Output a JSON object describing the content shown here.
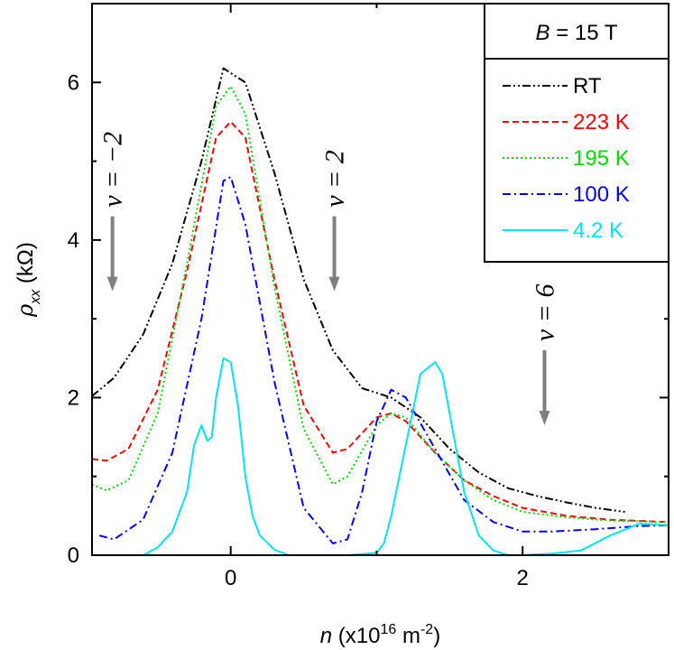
{
  "chart_data": {
    "type": "line",
    "xlabel": "n (x10^16 m^-2)",
    "ylabel": "ρxx (kΩ)",
    "xlim": [
      -0.95,
      3.0
    ],
    "ylim": [
      0,
      7.0
    ],
    "xticks": [
      0,
      2
    ],
    "yticks": [
      0,
      2,
      4,
      6
    ],
    "legend_title": "B = 15 T",
    "legend_position": "top-right",
    "colors": {
      "RT": "#000000",
      "223 K": "#ff0000",
      "195 K": "#00dd00",
      "100 K": "#0000ff",
      "4.2 K": "#00e5ee",
      "arrow": "#808080"
    },
    "annotations": [
      {
        "text": "ν = −2",
        "x": -0.81,
        "y_arrow_from": 4.3,
        "y_arrow_to": 3.35
      },
      {
        "text": "ν = 2",
        "x": 0.71,
        "y_arrow_from": 4.3,
        "y_arrow_to": 3.35
      },
      {
        "text": "ν = 6",
        "x": 2.15,
        "y_arrow_from": 2.6,
        "y_arrow_to": 1.65
      }
    ],
    "series": [
      {
        "name": "RT",
        "dash": "dashdotdot",
        "x": [
          -0.95,
          -0.8,
          -0.6,
          -0.4,
          -0.2,
          -0.05,
          0.1,
          0.3,
          0.5,
          0.7,
          0.9,
          1.1,
          1.3,
          1.5,
          1.7,
          1.9,
          2.1,
          2.3,
          2.5,
          2.7
        ],
        "y": [
          2.02,
          2.25,
          2.8,
          3.7,
          5.0,
          6.18,
          6.0,
          4.85,
          3.5,
          2.6,
          2.12,
          2.0,
          1.75,
          1.35,
          1.05,
          0.85,
          0.75,
          0.67,
          0.6,
          0.55
        ]
      },
      {
        "name": "223 K",
        "dash": "dashed",
        "x": [
          -0.95,
          -0.85,
          -0.7,
          -0.5,
          -0.3,
          -0.1,
          0.0,
          0.1,
          0.3,
          0.5,
          0.7,
          0.8,
          1.0,
          1.1,
          1.2,
          1.4,
          1.6,
          1.8,
          2.0,
          2.3,
          2.6,
          3.0
        ],
        "y": [
          1.22,
          1.2,
          1.35,
          2.1,
          3.6,
          5.3,
          5.5,
          5.3,
          3.5,
          1.9,
          1.3,
          1.35,
          1.75,
          1.8,
          1.7,
          1.3,
          0.95,
          0.75,
          0.6,
          0.5,
          0.45,
          0.42
        ]
      },
      {
        "name": "195 K",
        "dash": "dotted",
        "x": [
          -0.95,
          -0.85,
          -0.7,
          -0.5,
          -0.3,
          -0.1,
          0.0,
          0.1,
          0.3,
          0.5,
          0.7,
          0.8,
          1.0,
          1.1,
          1.2,
          1.4,
          1.6,
          1.8,
          2.0,
          2.3,
          2.6,
          3.0
        ],
        "y": [
          0.9,
          0.82,
          0.95,
          1.8,
          3.7,
          5.7,
          5.95,
          5.6,
          3.4,
          1.6,
          0.9,
          1.0,
          1.65,
          1.8,
          1.75,
          1.3,
          0.95,
          0.7,
          0.55,
          0.48,
          0.44,
          0.42
        ]
      },
      {
        "name": "100 K",
        "dash": "dashdot",
        "x": [
          -0.9,
          -0.8,
          -0.6,
          -0.4,
          -0.2,
          -0.05,
          0.0,
          0.1,
          0.3,
          0.5,
          0.7,
          0.8,
          0.9,
          1.0,
          1.1,
          1.2,
          1.4,
          1.6,
          1.8,
          2.0,
          2.2,
          2.5,
          2.8,
          3.0
        ],
        "y": [
          0.25,
          0.2,
          0.45,
          1.3,
          3.0,
          4.75,
          4.8,
          4.2,
          2.2,
          0.6,
          0.15,
          0.2,
          0.8,
          1.7,
          2.1,
          2.0,
          1.35,
          0.7,
          0.42,
          0.3,
          0.3,
          0.33,
          0.37,
          0.38
        ]
      },
      {
        "name": "4.2 K",
        "dash": "solid",
        "x": [
          -0.6,
          -0.5,
          -0.4,
          -0.3,
          -0.25,
          -0.2,
          -0.16,
          -0.13,
          -0.1,
          -0.05,
          0.0,
          0.05,
          0.1,
          0.15,
          0.2,
          0.3,
          0.4,
          0.5,
          0.6,
          0.8,
          1.0,
          1.05,
          1.1,
          1.2,
          1.3,
          1.4,
          1.45,
          1.5,
          1.6,
          1.7,
          1.8,
          1.9,
          2.0,
          2.2,
          2.4,
          2.6,
          2.8,
          3.0
        ],
        "y": [
          0.0,
          0.1,
          0.3,
          0.8,
          1.4,
          1.65,
          1.45,
          1.5,
          2.0,
          2.5,
          2.45,
          1.9,
          1.0,
          0.5,
          0.25,
          0.07,
          0.0,
          0.0,
          0.0,
          0.0,
          0.03,
          0.15,
          0.5,
          1.4,
          2.3,
          2.45,
          2.3,
          1.8,
          0.8,
          0.25,
          0.06,
          0.0,
          0.0,
          0.02,
          0.06,
          0.25,
          0.4,
          0.38
        ]
      }
    ]
  }
}
